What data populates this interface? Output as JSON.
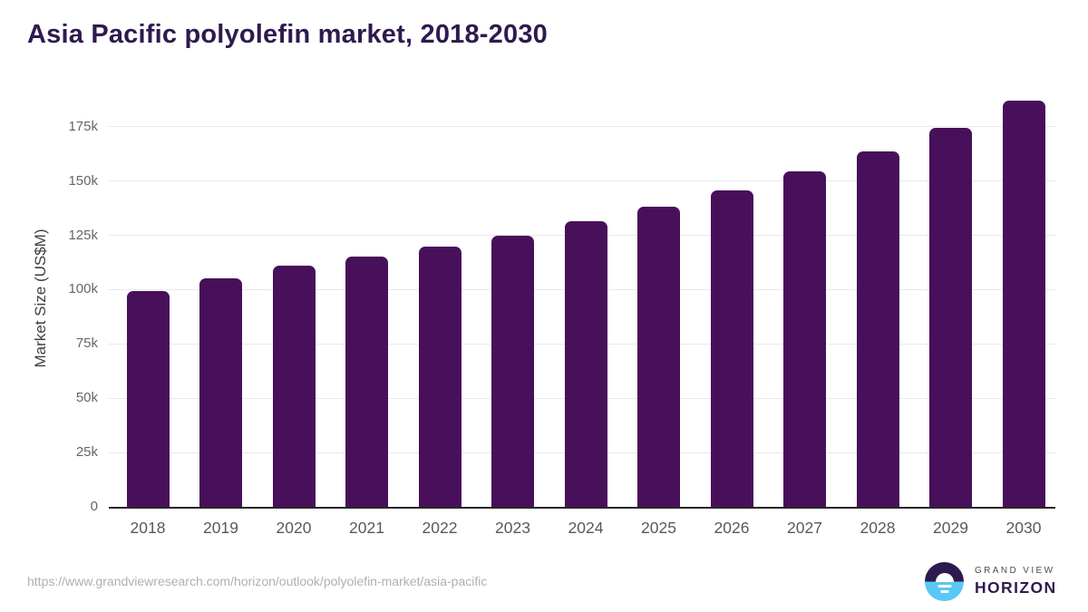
{
  "header": {
    "title": "Asia Pacific polyolefin market, 2018-2030"
  },
  "chart_data": {
    "type": "bar",
    "title": "Asia Pacific polyolefin market, 2018-2030",
    "xlabel": "",
    "ylabel": "Market Size (US$M)",
    "categories": [
      "2018",
      "2019",
      "2020",
      "2021",
      "2022",
      "2023",
      "2024",
      "2025",
      "2026",
      "2027",
      "2028",
      "2029",
      "2030"
    ],
    "values": [
      99.5,
      105.2,
      111.0,
      115.3,
      119.9,
      125.0,
      131.3,
      138.0,
      145.8,
      154.3,
      163.5,
      174.4,
      186.8
    ],
    "unit": "k",
    "ylim": [
      0,
      192
    ],
    "yticks": [
      {
        "value": 0,
        "label": "0"
      },
      {
        "value": 25,
        "label": "25k"
      },
      {
        "value": 50,
        "label": "50k"
      },
      {
        "value": 75,
        "label": "75k"
      },
      {
        "value": 100,
        "label": "100k"
      },
      {
        "value": 125,
        "label": "125k"
      },
      {
        "value": 150,
        "label": "150k"
      },
      {
        "value": 175,
        "label": "175k"
      }
    ],
    "grid": true,
    "legend": false,
    "bar_color": "#48105A"
  },
  "footer": {
    "source_url": "https://www.grandviewresearch.com/horizon/outlook/polyolefin-market/asia-pacific",
    "logo": {
      "top": "GRAND VIEW",
      "bottom": "HORIZON"
    }
  },
  "colors": {
    "title": "#2E1A4F",
    "bar": "#48105A",
    "gridline": "#E8E8E8",
    "axis_line": "#262626",
    "ytick_label": "#666666",
    "xtick_label": "#595959",
    "y_axis_title": "#404040",
    "source_url": "#B0B0B0",
    "logo_purple": "#2D1B4E",
    "logo_blue": "#5AC8F5"
  }
}
